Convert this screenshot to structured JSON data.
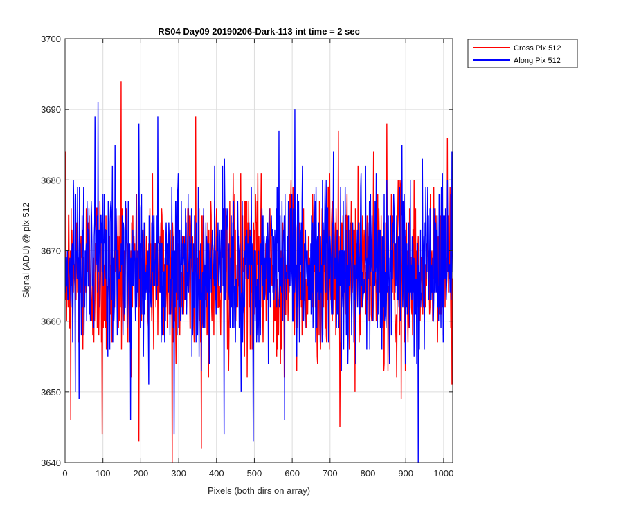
{
  "chart_data": {
    "type": "line",
    "title": "RS04 Day09 20190206-Dark-113 int time = 2 sec",
    "xlabel": "Pixels (both dirs on array)",
    "ylabel": "Signal (ADU) @ pix 512",
    "xlim": [
      0,
      1024
    ],
    "ylim": [
      3640,
      3700
    ],
    "x_ticks": [
      "0",
      "100",
      "200",
      "300",
      "400",
      "500",
      "600",
      "700",
      "800",
      "900",
      "1000"
    ],
    "y_ticks": [
      "3640",
      "3650",
      "3660",
      "3670",
      "3680",
      "3690",
      "3700"
    ],
    "grid": true,
    "legend_position": "outside top-right",
    "series": [
      {
        "name": "Cross Pix 512",
        "color": "#ff0000",
        "x_start": 1,
        "x_step": 1,
        "count": 1024,
        "mean": 3667,
        "std": 6,
        "min": 3640,
        "max": 3694,
        "peaks": [
          [
            148,
            3694
          ],
          [
            345,
            3689
          ],
          [
            722,
            3687
          ],
          [
            850,
            3688
          ],
          [
            1010,
            3686
          ]
        ],
        "troughs": [
          [
            283,
            3640
          ],
          [
            15,
            3646
          ],
          [
            98,
            3644
          ],
          [
            726,
            3645
          ],
          [
            888,
            3649
          ]
        ]
      },
      {
        "name": "Along Pix 512",
        "color": "#0000ff",
        "x_start": 1,
        "x_step": 1,
        "count": 1024,
        "mean": 3668,
        "std": 6,
        "min": 3640,
        "max": 3691,
        "peaks": [
          [
            87,
            3691
          ],
          [
            607,
            3690
          ],
          [
            245,
            3689
          ],
          [
            195,
            3688
          ],
          [
            565,
            3687
          ]
        ],
        "troughs": [
          [
            933,
            3640
          ],
          [
            288,
            3644
          ],
          [
            420,
            3644
          ],
          [
            497,
            3643
          ],
          [
            580,
            3646
          ]
        ]
      }
    ]
  }
}
